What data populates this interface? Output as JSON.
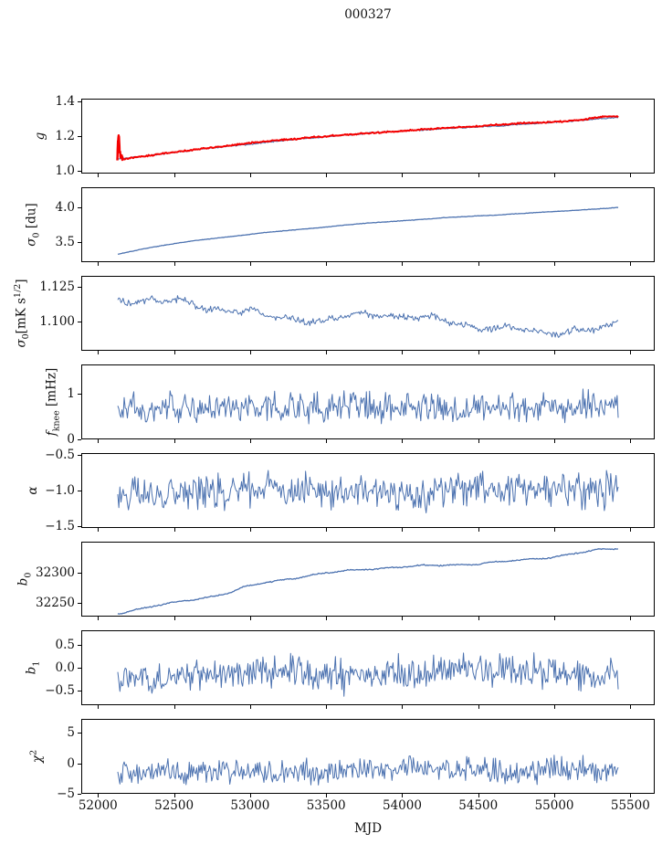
{
  "title": "000327",
  "chart_data": {
    "type": "line",
    "title": "000327",
    "xlabel": "MJD",
    "grid": false,
    "legend": "none",
    "axis_color": "#000000",
    "xlim": [
      51890,
      55660
    ],
    "x_data_range": [
      52130,
      55420
    ],
    "xticks": [
      {
        "v": 52000,
        "label": "52000"
      },
      {
        "v": 52500,
        "label": "52500"
      },
      {
        "v": 53000,
        "label": "53000"
      },
      {
        "v": 53500,
        "label": "53500"
      },
      {
        "v": 54000,
        "label": "54000"
      },
      {
        "v": 54500,
        "label": "54500"
      },
      {
        "v": 55000,
        "label": "55000"
      },
      {
        "v": 55500,
        "label": "55500"
      }
    ],
    "panels": [
      {
        "id": "g",
        "ylabel": [
          {
            "t": "g",
            "i": true
          }
        ],
        "ylabel_x": 44,
        "ylim": [
          0.985,
          1.415
        ],
        "yticks": [
          {
            "v": 1.0,
            "label": "1.0"
          },
          {
            "v": 1.2,
            "label": "1.2"
          },
          {
            "v": 1.4,
            "label": "1.4"
          }
        ],
        "series": [
          {
            "name": "g-model-blue",
            "color": "#4c72b0",
            "width": 1.1,
            "n": 480,
            "x0": 52130,
            "x1": 55420,
            "jitter": 0.004,
            "wander": 0.0015,
            "trend": [
              [
                52130,
                1.067
              ],
              [
                52250,
                1.078
              ],
              [
                52400,
                1.094
              ],
              [
                52600,
                1.116
              ],
              [
                52800,
                1.137
              ],
              [
                53000,
                1.156
              ],
              [
                53200,
                1.173
              ],
              [
                53400,
                1.189
              ],
              [
                53600,
                1.203
              ],
              [
                53800,
                1.216
              ],
              [
                54000,
                1.228
              ],
              [
                54200,
                1.239
              ],
              [
                54400,
                1.249
              ],
              [
                54600,
                1.259
              ],
              [
                54800,
                1.269
              ],
              [
                55000,
                1.278
              ],
              [
                55100,
                1.284
              ],
              [
                55200,
                1.291
              ],
              [
                55300,
                1.299
              ],
              [
                55420,
                1.305
              ]
            ]
          },
          {
            "name": "g-measured-red",
            "color": "#f40000",
            "width": 2.0,
            "n": 480,
            "x0": 52163,
            "x1": 55420,
            "jitter": 0.005,
            "wander": 0.0015,
            "trend": [
              [
                52163,
                1.069
              ],
              [
                52250,
                1.081
              ],
              [
                52400,
                1.097
              ],
              [
                52600,
                1.119
              ],
              [
                52800,
                1.14
              ],
              [
                53000,
                1.159
              ],
              [
                53200,
                1.176
              ],
              [
                53400,
                1.192
              ],
              [
                53600,
                1.206
              ],
              [
                53800,
                1.219
              ],
              [
                54000,
                1.231
              ],
              [
                54200,
                1.242
              ],
              [
                54400,
                1.252
              ],
              [
                54600,
                1.262
              ],
              [
                54800,
                1.272
              ],
              [
                55000,
                1.281
              ],
              [
                55100,
                1.288
              ],
              [
                55200,
                1.297
              ],
              [
                55300,
                1.308
              ],
              [
                55360,
                1.316
              ],
              [
                55420,
                1.313
              ]
            ]
          },
          {
            "name": "g-start-spike-red",
            "color": "#f40000",
            "width": 2.4,
            "n": 34,
            "x0": 52127,
            "x1": 52163,
            "jitter": 0.02,
            "wander": 0,
            "trend": [
              [
                52127,
                1.072
              ],
              [
                52131,
                1.16
              ],
              [
                52134,
                1.205
              ],
              [
                52138,
                1.19
              ],
              [
                52142,
                1.12
              ],
              [
                52147,
                1.085
              ],
              [
                52154,
                1.072
              ],
              [
                52163,
                1.068
              ]
            ]
          }
        ]
      },
      {
        "id": "sigma0-du",
        "ylabel": [
          {
            "t": "σ",
            "i": true
          },
          {
            "t": "0",
            "sub": true
          },
          {
            "t": " [du]"
          }
        ],
        "ylabel_x": 36,
        "ylim": [
          3.22,
          4.28
        ],
        "yticks": [
          {
            "v": 3.5,
            "label": "3.5"
          },
          {
            "v": 4.0,
            "label": "4.0"
          }
        ],
        "series": [
          {
            "name": "sigma0-du",
            "color": "#4c72b0",
            "width": 1.3,
            "n": 480,
            "x0": 52130,
            "x1": 55420,
            "jitter": 0.004,
            "wander": 0.002,
            "trend": [
              [
                52130,
                3.33
              ],
              [
                52300,
                3.41
              ],
              [
                52500,
                3.48
              ],
              [
                52700,
                3.54
              ],
              [
                52900,
                3.59
              ],
              [
                53100,
                3.64
              ],
              [
                53300,
                3.68
              ],
              [
                53500,
                3.72
              ],
              [
                53700,
                3.76
              ],
              [
                53900,
                3.79
              ],
              [
                54100,
                3.82
              ],
              [
                54300,
                3.85
              ],
              [
                54500,
                3.875
              ],
              [
                54700,
                3.9
              ],
              [
                54900,
                3.925
              ],
              [
                55100,
                3.95
              ],
              [
                55250,
                3.97
              ],
              [
                55420,
                3.99
              ]
            ]
          }
        ]
      },
      {
        "id": "sigma0-mK",
        "ylabel": [
          {
            "t": "σ",
            "i": true
          },
          {
            "t": "0",
            "sub": true
          },
          {
            "t": "[mK s"
          },
          {
            "t": "1/2",
            "sup": true
          },
          {
            "t": "]"
          }
        ],
        "ylabel_x": 24,
        "ylim": [
          1.079,
          1.133
        ],
        "yticks": [
          {
            "v": 1.1,
            "label": "1.100"
          },
          {
            "v": 1.125,
            "label": "1.125"
          }
        ],
        "series": [
          {
            "name": "sigma0-mK",
            "color": "#4c72b0",
            "width": 1.0,
            "n": 470,
            "x0": 52130,
            "x1": 55420,
            "jitter": 0.003,
            "wander": 0.0028,
            "trend": [
              [
                52130,
                1.1165
              ],
              [
                52250,
                1.114
              ],
              [
                52400,
                1.1125
              ],
              [
                52550,
                1.111
              ],
              [
                52700,
                1.109
              ],
              [
                52850,
                1.1085
              ],
              [
                53000,
                1.108
              ],
              [
                53100,
                1.106
              ],
              [
                53250,
                1.105
              ],
              [
                53400,
                1.1045
              ],
              [
                53500,
                1.102
              ],
              [
                53600,
                1.1035
              ],
              [
                53750,
                1.104
              ],
              [
                53900,
                1.103
              ],
              [
                54050,
                1.101
              ],
              [
                54200,
                1.099
              ],
              [
                54350,
                1.097
              ],
              [
                54500,
                1.0975
              ],
              [
                54650,
                1.098
              ],
              [
                54800,
                1.0965
              ],
              [
                54950,
                1.094
              ],
              [
                55050,
                1.0955
              ],
              [
                55150,
                1.096
              ],
              [
                55250,
                1.094
              ],
              [
                55350,
                1.0935
              ],
              [
                55420,
                1.097
              ]
            ]
          }
        ]
      },
      {
        "id": "f-knee",
        "ylabel": [
          {
            "t": "f",
            "i": true
          },
          {
            "t": "knee",
            "sub": true
          },
          {
            "t": " [mHz]"
          }
        ],
        "ylabel_x": 58,
        "ylim": [
          0,
          1.64
        ],
        "yticks": [
          {
            "v": 0,
            "label": "0"
          },
          {
            "v": 1,
            "label": "1"
          }
        ],
        "series": [
          {
            "name": "f-knee",
            "color": "#4c72b0",
            "width": 1.0,
            "n": 470,
            "x0": 52130,
            "x1": 55420,
            "jitter": 0.38,
            "wander": 0.03,
            "trend": [
              [
                52130,
                0.7
              ],
              [
                53000,
                0.68
              ],
              [
                54000,
                0.7
              ],
              [
                55000,
                0.69
              ],
              [
                55420,
                0.7
              ]
            ]
          }
        ]
      },
      {
        "id": "alpha",
        "ylabel": [
          {
            "t": "α",
            "i": true
          }
        ],
        "ylabel_x": 36,
        "ylim": [
          -1.52,
          -0.48
        ],
        "yticks": [
          {
            "v": -1.5,
            "label": "−1.5"
          },
          {
            "v": -1.0,
            "label": "−1.0"
          },
          {
            "v": -0.5,
            "label": "−0.5"
          }
        ],
        "series": [
          {
            "name": "alpha",
            "color": "#4c72b0",
            "width": 1.0,
            "n": 470,
            "x0": 52130,
            "x1": 55420,
            "jitter": 0.3,
            "wander": 0.025,
            "trend": [
              [
                52130,
                -1.03
              ],
              [
                53000,
                -1.01
              ],
              [
                54000,
                -1.0
              ],
              [
                55000,
                -1.0
              ],
              [
                55420,
                -0.99
              ]
            ]
          }
        ]
      },
      {
        "id": "b0",
        "ylabel": [
          {
            "t": "b",
            "i": true
          },
          {
            "t": "0",
            "sub": true
          }
        ],
        "ylabel_x": 27,
        "ylim": [
          32228,
          32352
        ],
        "yticks": [
          {
            "v": 32250,
            "label": "32250"
          },
          {
            "v": 32300,
            "label": "32300"
          }
        ],
        "series": [
          {
            "name": "b0",
            "color": "#4c72b0",
            "width": 1.3,
            "n": 480,
            "x0": 52130,
            "x1": 55420,
            "jitter": 1.2,
            "wander": 1.6,
            "trend": [
              [
                52130,
                32232
              ],
              [
                52350,
                32243
              ],
              [
                52560,
                32254
              ],
              [
                52700,
                32261
              ],
              [
                52850,
                32268
              ],
              [
                52950,
                32277
              ],
              [
                53100,
                32285
              ],
              [
                53250,
                32291
              ],
              [
                53400,
                32296
              ],
              [
                53600,
                32301
              ],
              [
                53800,
                32306
              ],
              [
                54000,
                32310
              ],
              [
                54200,
                32313
              ],
              [
                54400,
                32316
              ],
              [
                54600,
                32319
              ],
              [
                54800,
                32322
              ],
              [
                54950,
                32325
              ],
              [
                55100,
                32330
              ],
              [
                55250,
                32335
              ],
              [
                55420,
                32339
              ]
            ]
          }
        ]
      },
      {
        "id": "b1",
        "ylabel": [
          {
            "t": "b",
            "i": true
          },
          {
            "t": "1",
            "sub": true
          }
        ],
        "ylabel_x": 36,
        "ylim": [
          -0.82,
          0.82
        ],
        "yticks": [
          {
            "v": -0.5,
            "label": "−0.5"
          },
          {
            "v": 0.0,
            "label": "0.0"
          },
          {
            "v": 0.5,
            "label": "0.5"
          }
        ],
        "series": [
          {
            "name": "b1",
            "color": "#4c72b0",
            "width": 1.0,
            "n": 470,
            "x0": 52130,
            "x1": 55420,
            "jitter": 0.45,
            "wander": 0.05,
            "trend": [
              [
                52130,
                -0.23
              ],
              [
                52600,
                -0.2
              ],
              [
                53100,
                -0.15
              ],
              [
                53600,
                -0.11
              ],
              [
                54100,
                -0.09
              ],
              [
                54600,
                -0.07
              ],
              [
                55100,
                -0.1
              ],
              [
                55420,
                -0.07
              ]
            ]
          }
        ]
      },
      {
        "id": "chi2",
        "ylabel": [
          {
            "t": "χ",
            "i": true
          },
          {
            "t": "2",
            "sup": true
          }
        ],
        "ylabel_x": 40,
        "ylim": [
          -5.0,
          7.3
        ],
        "yticks": [
          {
            "v": -5,
            "label": "−5"
          },
          {
            "v": 0,
            "label": "0"
          },
          {
            "v": 5,
            "label": "5"
          }
        ],
        "series": [
          {
            "name": "chi2",
            "color": "#4c72b0",
            "width": 1.0,
            "n": 470,
            "x0": 52130,
            "x1": 55420,
            "jitter": 2.4,
            "wander": 0.25,
            "trend": [
              [
                52130,
                -1.5
              ],
              [
                52800,
                -1.4
              ],
              [
                53500,
                -1.2
              ],
              [
                54200,
                -1.1
              ],
              [
                54900,
                -0.95
              ],
              [
                55420,
                -0.9
              ]
            ]
          }
        ]
      }
    ]
  }
}
